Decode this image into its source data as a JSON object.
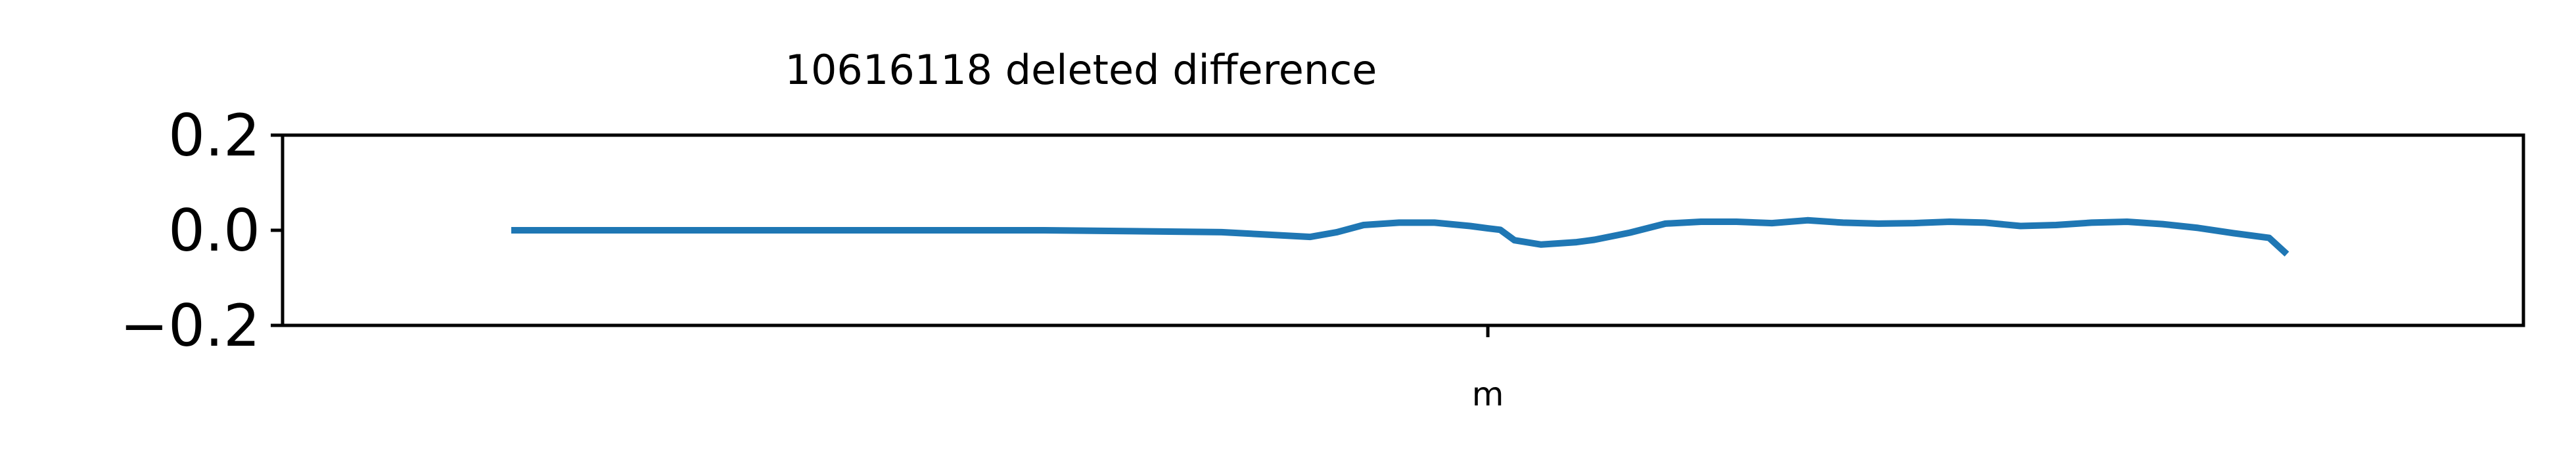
{
  "chart_data": {
    "type": "line",
    "title": "10616118 deleted difference",
    "xlabel": "",
    "ylabel": "",
    "ylim": [
      -0.2,
      0.2
    ],
    "yticks": [
      0.2,
      0.0,
      -0.2
    ],
    "ytick_labels": [
      "0.2",
      "0.0",
      "−0.2"
    ],
    "xlim": [
      0,
      100
    ],
    "xticks": [
      55
    ],
    "xtick_labels": [
      "m"
    ],
    "grid": false,
    "legend": "none",
    "series": [
      {
        "color": "#1f77b4",
        "x": [
          0,
          5,
          10,
          15,
          20,
          25,
          30,
          35,
          40,
          42.5,
          45,
          46.5,
          48,
          50,
          52,
          54,
          55,
          55.7,
          56.5,
          58,
          60,
          61,
          63,
          65,
          67,
          69,
          71,
          73,
          75,
          77,
          79,
          81,
          83,
          85,
          87,
          89,
          91,
          93,
          95,
          97,
          99,
          100
        ],
        "y": [
          0,
          0,
          0,
          0,
          0,
          0,
          0,
          -0.002,
          -0.004,
          -0.009,
          -0.014,
          -0.004,
          0.011,
          0.016,
          0.016,
          0.009,
          0.004,
          0.001,
          -0.021,
          -0.03,
          -0.025,
          -0.02,
          -0.005,
          0.014,
          0.018,
          0.018,
          0.015,
          0.021,
          0.016,
          0.014,
          0.015,
          0.018,
          0.016,
          0.009,
          0.011,
          0.016,
          0.018,
          0.013,
          0.005,
          -0.006,
          -0.016,
          -0.05
        ]
      }
    ]
  }
}
